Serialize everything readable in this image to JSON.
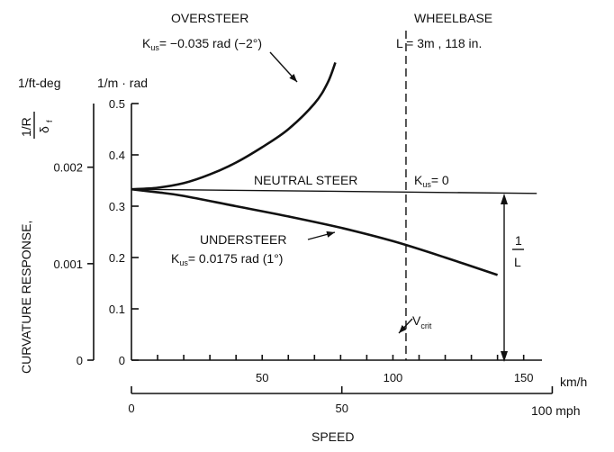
{
  "chart_data": {
    "type": "line",
    "annotations": {
      "oversteer_title": "OVERSTEER",
      "oversteer_k": "K",
      "oversteer_k_sub": "us",
      "oversteer_value": "= −0.035 rad  (−2°)",
      "wheelbase_title": "WHEELBASE",
      "wheelbase_value": "L = 3m ,  118 in.",
      "neutral_label": "NEUTRAL  STEER",
      "neutral_k": "K",
      "neutral_k_sub": "us",
      "neutral_value": "= 0",
      "understeer_title": "UNDERSTEER",
      "understeer_k": "K",
      "understeer_k_sub": "us",
      "understeer_value": "= 0.0175 rad  (1°)",
      "vcrit": "V",
      "vcrit_sub": "crit",
      "one_over_L_num": "1",
      "one_over_L_den": "L"
    },
    "y_axis_metric": {
      "unit": "1/m · rad",
      "ticks": [
        0,
        0.1,
        0.2,
        0.3,
        0.4,
        0.5
      ],
      "tick_labels": [
        "0",
        "0.1",
        "0.2",
        "0.3",
        "0.4",
        "0.5"
      ],
      "range": [
        0,
        0.5
      ]
    },
    "y_axis_imperial": {
      "unit": "1/ft-deg",
      "ticks": [
        0,
        0.001,
        0.002
      ],
      "tick_labels": [
        "0",
        "0.001",
        "0.002"
      ]
    },
    "ylabel": "CURVATURE  RESPONSE,",
    "ylabel_fraction": {
      "num": "1/R",
      "den": "δ",
      "den_sub": "f"
    },
    "x_axis_kmh": {
      "unit": "km/h",
      "ticks": [
        50,
        100,
        150
      ],
      "tick_labels": [
        "50",
        "100",
        "150"
      ],
      "range": [
        0,
        157
      ]
    },
    "x_axis_mph": {
      "unit": "100 mph",
      "ticks": [
        0,
        50,
        100
      ],
      "tick_labels": [
        "0",
        "50",
        ""
      ]
    },
    "xlabel": "SPEED",
    "vcrit_kmh": 105,
    "series": [
      {
        "id": "oversteer",
        "x": [
          0,
          10,
          20,
          30,
          40,
          50,
          60,
          70,
          75,
          78
        ],
        "y": [
          0.333,
          0.336,
          0.345,
          0.362,
          0.385,
          0.415,
          0.45,
          0.5,
          0.54,
          0.58
        ]
      },
      {
        "id": "neutral",
        "x": [
          0,
          155
        ],
        "y": [
          0.333,
          0.325
        ]
      },
      {
        "id": "understeer",
        "x": [
          0,
          10,
          20,
          40,
          60,
          80,
          100,
          120,
          140
        ],
        "y": [
          0.333,
          0.327,
          0.32,
          0.3,
          0.28,
          0.258,
          0.232,
          0.2,
          0.166
        ]
      }
    ]
  }
}
